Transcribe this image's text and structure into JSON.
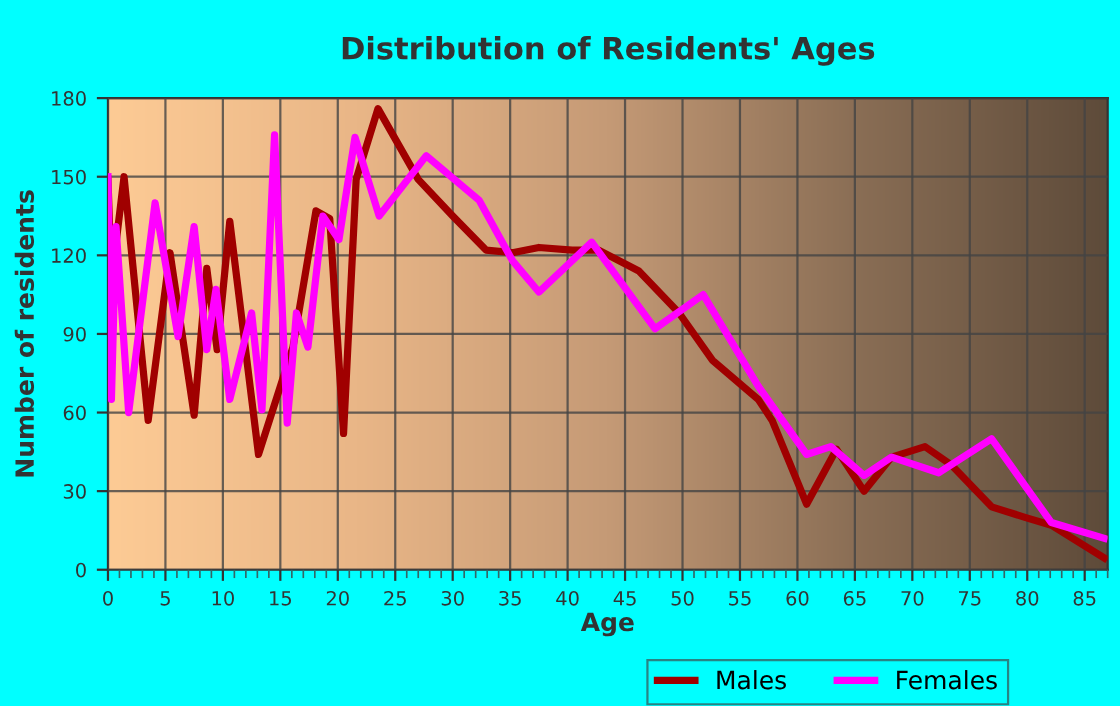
{
  "chart_data": {
    "type": "line",
    "title": "Distribution of Residents' Ages",
    "xlabel": "Age",
    "ylabel": "Number of residents",
    "series": [
      {
        "name": "Males",
        "color": "#a00000",
        "x": [
          0,
          0.3,
          1.4,
          3.5,
          5.4,
          7.5,
          8.6,
          9.5,
          10.6,
          13.1,
          16.1,
          18.1,
          19.3,
          20.5,
          21.6,
          23.5,
          27,
          30,
          32.9,
          35.2,
          37.5,
          40.4,
          42.7,
          46.2,
          49.7,
          52.6,
          56.6,
          57.8,
          60.8,
          63.4,
          65.8,
          68.2,
          71.1,
          73.4,
          76.9,
          79.8,
          82.1,
          86.7
        ],
        "values": [
          149,
          110,
          150,
          57,
          121,
          59,
          115,
          84,
          133,
          44,
          85,
          137,
          134,
          52,
          149,
          176,
          149,
          135,
          122,
          121,
          123,
          122,
          122,
          114,
          98,
          80,
          65,
          57,
          25,
          46,
          30,
          43,
          47,
          40,
          24,
          20,
          17,
          4.5
        ]
      },
      {
        "name": "Females",
        "color": "#ff00ff",
        "x": [
          0,
          0.3,
          0.7,
          1.8,
          4.1,
          6.1,
          7.5,
          8.6,
          9.4,
          10.6,
          12.5,
          13.4,
          14.5,
          15.6,
          16.4,
          17.4,
          18.7,
          20.1,
          21.5,
          23.6,
          27.7,
          32.3,
          35.2,
          37.5,
          42.1,
          47.6,
          51.8,
          56.6,
          60.8,
          62.9,
          65.8,
          68.2,
          72.3,
          76.9,
          82.1,
          86.7
        ],
        "values": [
          150,
          65,
          131,
          60,
          140,
          89,
          131,
          84,
          107,
          65,
          98,
          61,
          166,
          56,
          98,
          85,
          135,
          126,
          165,
          135,
          158,
          141,
          118,
          106,
          125,
          92,
          105,
          70,
          44,
          47,
          36,
          43,
          37,
          50,
          18,
          12
        ]
      }
    ],
    "xlim": [
      0,
      87
    ],
    "xticks": [
      0,
      5,
      10,
      15,
      20,
      25,
      30,
      35,
      40,
      45,
      50,
      55,
      60,
      65,
      70,
      75,
      80,
      85
    ],
    "ylim": [
      0,
      180
    ],
    "yticks": [
      0,
      30,
      60,
      90,
      120,
      150,
      180
    ],
    "grid": true,
    "legend": "bottom",
    "line_style": "solid",
    "marker": "none"
  }
}
